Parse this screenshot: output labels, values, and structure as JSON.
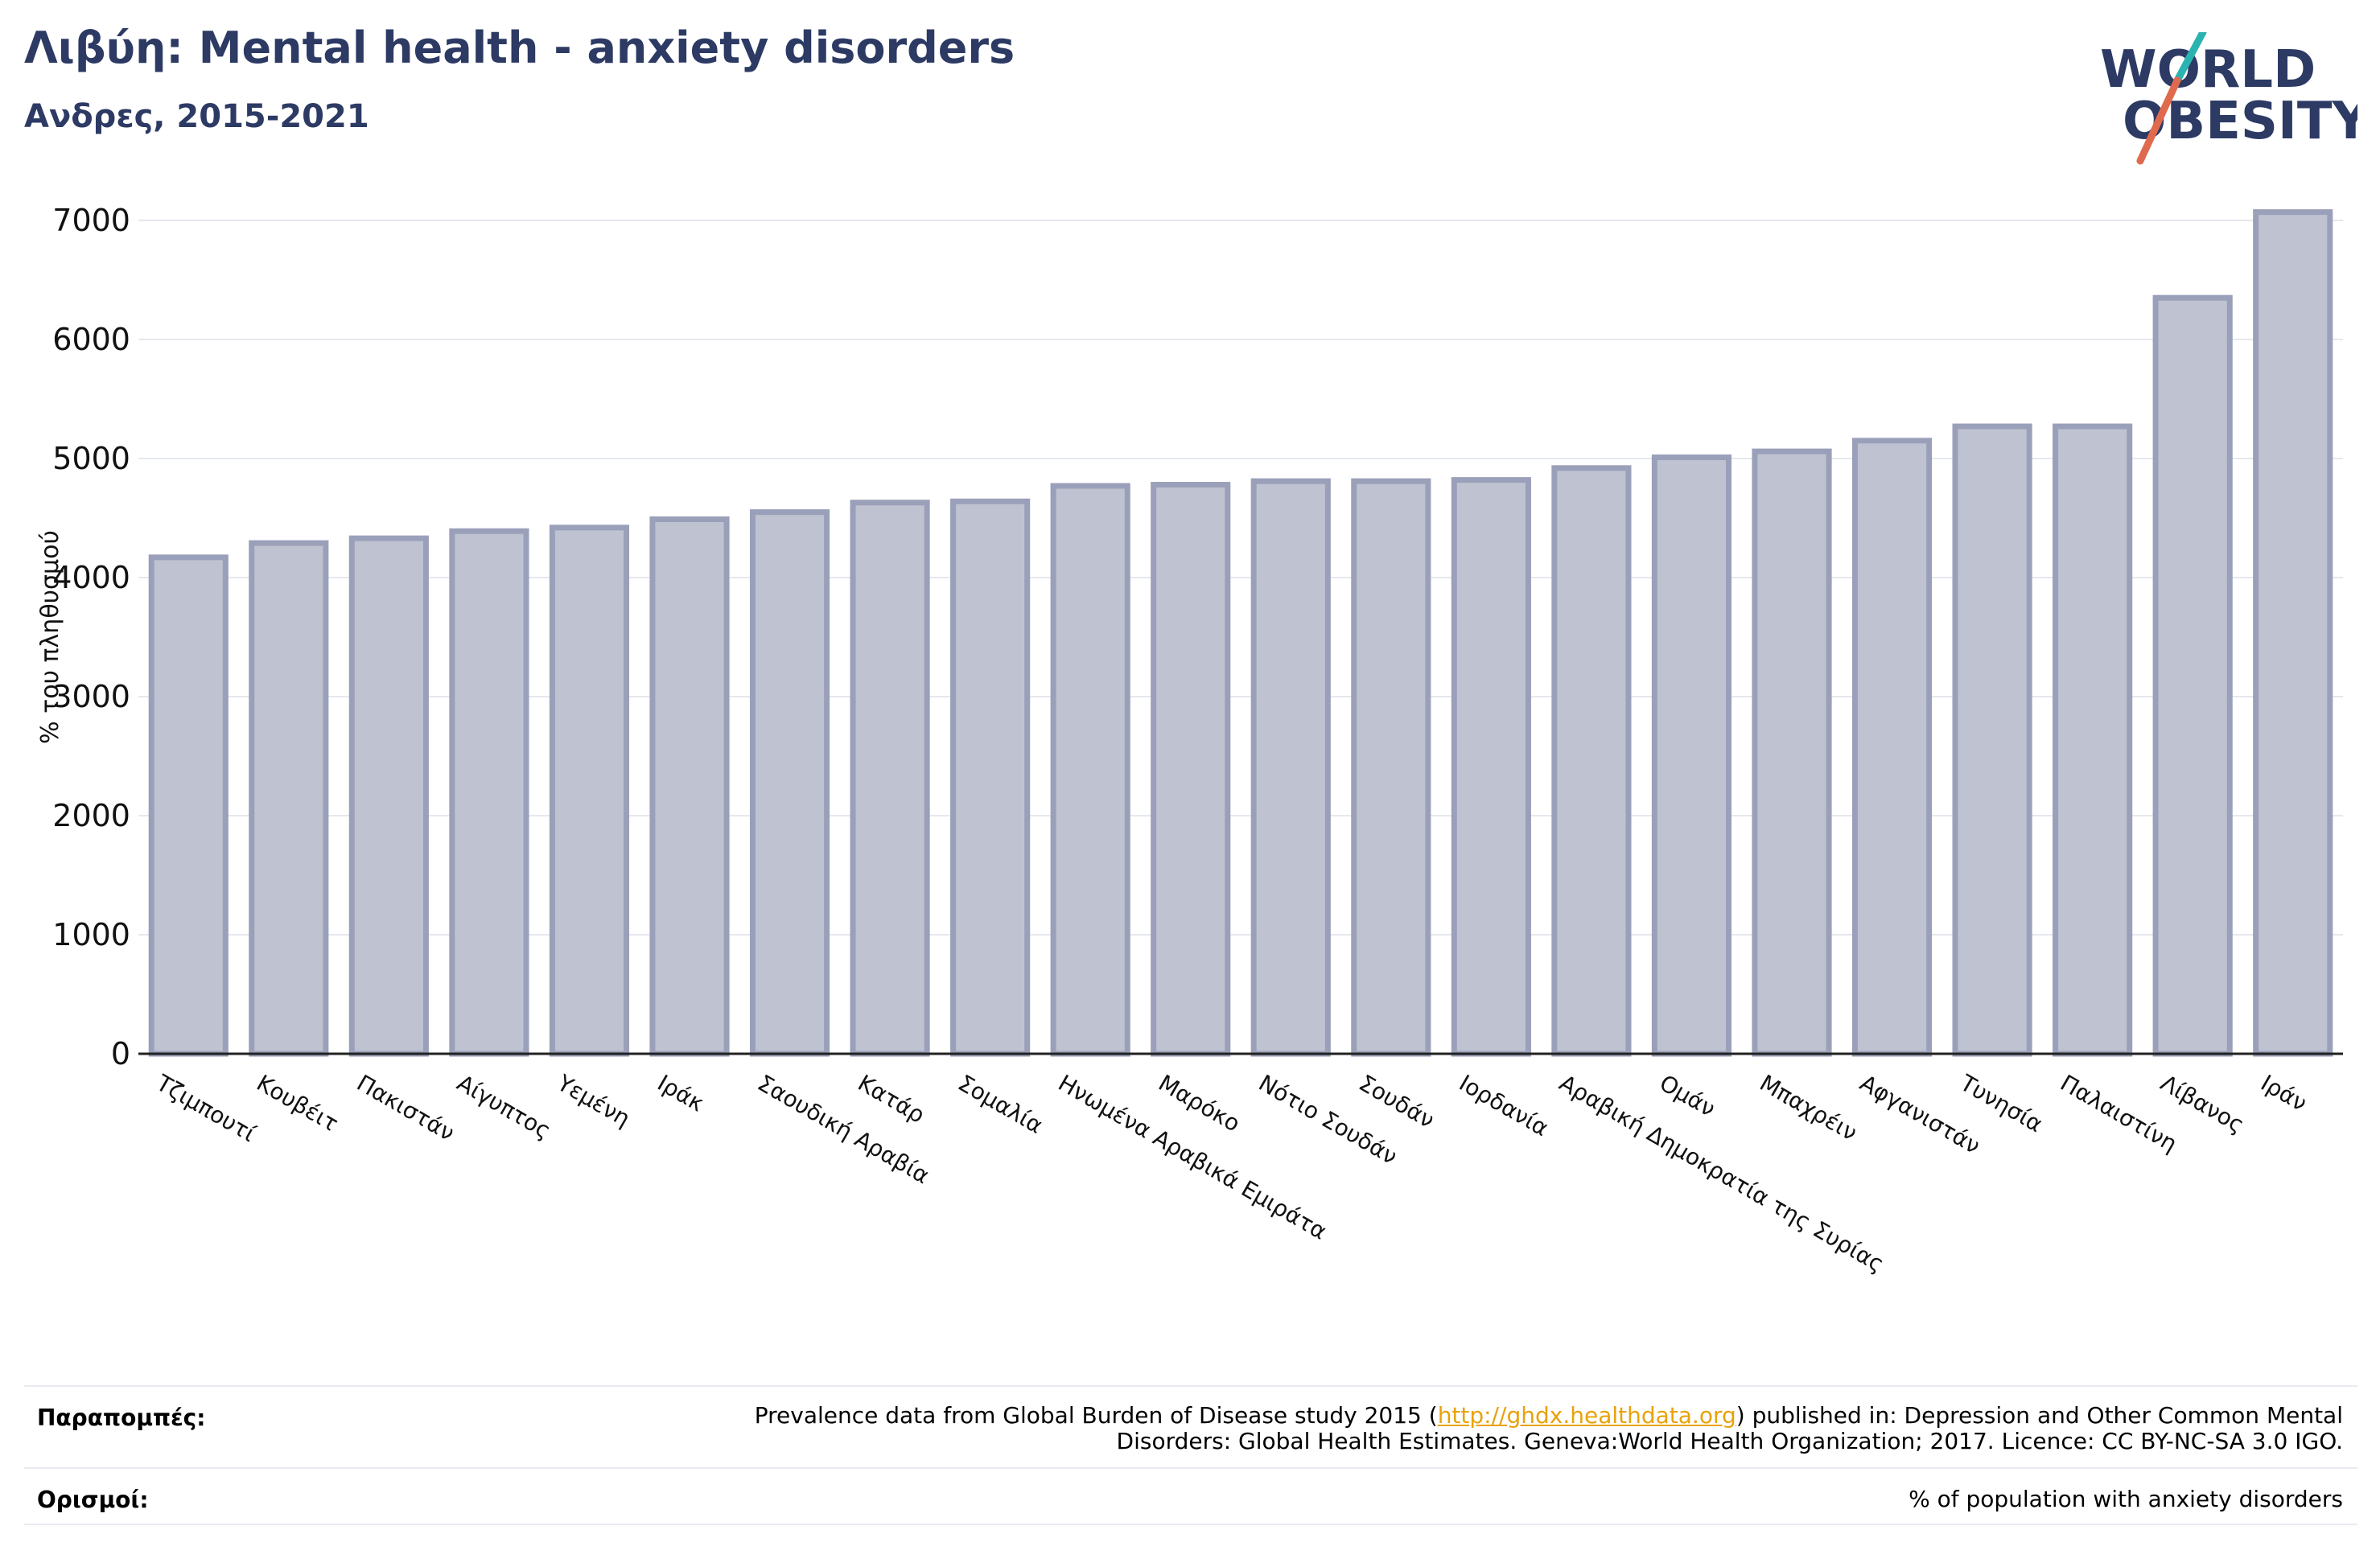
{
  "header": {
    "title": "Λιβύη: Mental health - anxiety disorders",
    "subtitle": "Ανδρες, 2015-2021"
  },
  "logo": {
    "line1": "WORLD",
    "line2": "OBESITY"
  },
  "colors": {
    "bar_fill": "#bfc2d0",
    "bar_stroke": "#9aa0b9",
    "title": "#2c3a64",
    "logo_slash_top": "#2bb3b1",
    "logo_slash_bottom": "#e06a4e"
  },
  "chart_data": {
    "type": "bar",
    "ylabel": "% του πληθυσμού",
    "ylim": [
      0,
      7000
    ],
    "yticks": [
      0,
      1000,
      2000,
      3000,
      4000,
      5000,
      6000,
      7000
    ],
    "grid": true,
    "categories": [
      "Τζιμπουτί",
      "Κουβέιτ",
      "Πακιστάν",
      "Αίγυπτος",
      "Υεμένη",
      "Ιράκ",
      "Σαουδική Αραβία",
      "Κατάρ",
      "Σομαλία",
      "Ηνωμένα Αραβικά Εμιράτα",
      "Μαρόκο",
      "Νότιο Σουδάν",
      "Σουδάν",
      "Ιορδανία",
      "Αραβική Δημοκρατία της Συρίας",
      "Ομάν",
      "Μπαχρέιν",
      "Αφγανιστάν",
      "Τυνησία",
      "Παλαιστίνη",
      "Λίβανος",
      "Ιράν"
    ],
    "values": [
      4170,
      4290,
      4330,
      4390,
      4420,
      4490,
      4550,
      4630,
      4640,
      4770,
      4780,
      4810,
      4810,
      4820,
      4920,
      5010,
      5060,
      5150,
      5270,
      5270,
      6350,
      7070
    ]
  },
  "footer": {
    "references_label": "Παραπομπές:",
    "references_before": "Prevalence data from Global Burden of Disease study 2015 (",
    "references_link": "http://ghdx.healthdata.org",
    "references_after": ") published in: Depression and Other Common Mental",
    "references_line2": "Disorders: Global Health Estimates. Geneva:World Health Organization; 2017. Licence: CC BY-NC-SA 3.0 IGO.",
    "definitions_label": "Ορισμοί:",
    "definitions_text": "% of population with anxiety disorders"
  }
}
